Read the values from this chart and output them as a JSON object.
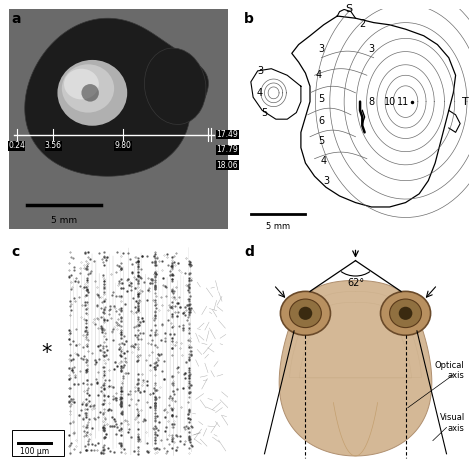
{
  "panel_labels": [
    "a",
    "b",
    "c",
    "d"
  ],
  "panel_a": {
    "measurements": [
      "0.24",
      "3.56",
      "9.80",
      "17.49",
      "17.79",
      "18.06"
    ],
    "scale_label": "5 mm",
    "bg_color": "#787878",
    "eye_dark": "#1a1a1a",
    "lens_light": "#c8c8c8",
    "lens_highlight": "#e0e0e0"
  },
  "panel_b": {
    "scale_label": "5 mm",
    "S_label": "S",
    "T_label": "T"
  },
  "panel_c": {
    "asterisk": "*",
    "scale_label": "100 μm"
  },
  "panel_d": {
    "angle_label": "62°",
    "optical_axis": "Optical\naxis",
    "visual_axis": "Visual\naxis"
  },
  "label_fontsize": 10,
  "annotation_fontsize": 7
}
